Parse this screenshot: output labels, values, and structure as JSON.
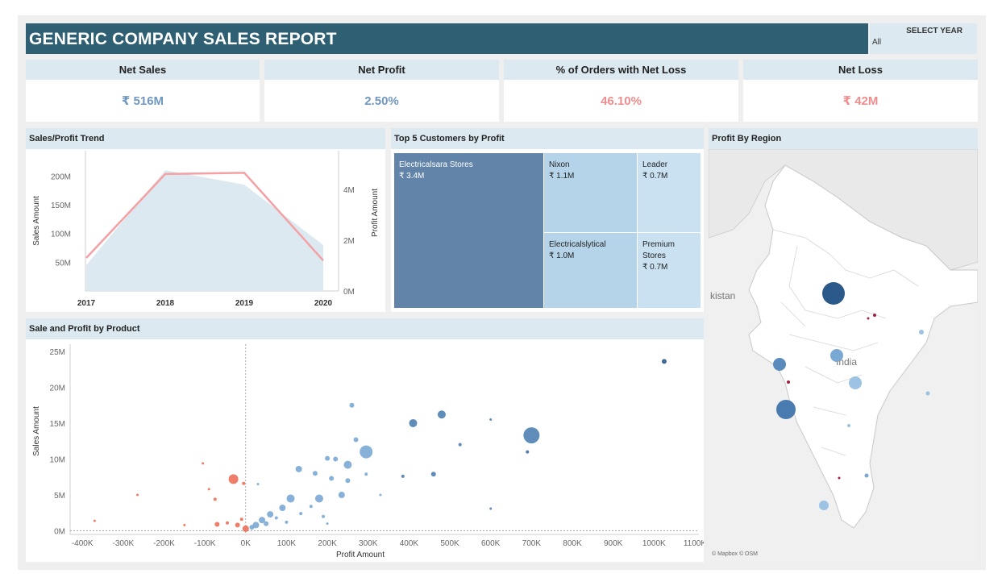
{
  "header": {
    "title": "GENERIC COMPANY SALES REPORT",
    "select_year_label": "SELECT YEAR",
    "select_year_value": "All"
  },
  "kpis": [
    {
      "label": "Net Sales",
      "value": "₹ 516M",
      "color": "#6f97bf"
    },
    {
      "label": "Net Profit",
      "value": "2.50%",
      "color": "#6f97bf"
    },
    {
      "label": "% of Orders with Net Loss",
      "value": "46.10%",
      "color": "#ef8d8d"
    },
    {
      "label": "Net Loss",
      "value": "₹ 42M",
      "color": "#ef8d8d"
    }
  ],
  "panels": {
    "trend_title": "Sales/Profit Trend",
    "customers_title": "Top 5 Customers by Profit",
    "region_title": "Profit By Region",
    "product_title": "Sale and Profit by Product"
  },
  "map": {
    "attribution": "© Mapbox © OSM",
    "label_pakistan": "kistan",
    "label_india": "India"
  },
  "treemap": [
    {
      "name": "Electricalsara Stores",
      "value": "₹ 3.4M",
      "color": "#6184a8"
    },
    {
      "name": "Nixon",
      "value": "₹ 1.1M",
      "color": "#b5d4ea"
    },
    {
      "name": "Leader",
      "value": "₹ 0.7M",
      "color": "#c9e1f1"
    },
    {
      "name": "Electricalslytical",
      "value": "₹ 1.0M",
      "color": "#b5d4ea"
    },
    {
      "name": "Premium Stores",
      "value": "₹ 0.7M",
      "color": "#c9e1f1"
    }
  ],
  "chart_data": [
    {
      "type": "area",
      "categories": [
        "2017",
        "2018",
        "2019",
        "2020"
      ],
      "series": [
        {
          "values": [
            45,
            210,
            185,
            80
          ],
          "color": "#dce9f0"
        },
        {
          "values": [
            1.3,
            4.6,
            4.65,
            1.2
          ],
          "color": "#f4a0a5"
        }
      ],
      "ylabel": "Sales Amount",
      "y2label": "Profit Amount",
      "yticks": [
        "50M",
        "100M",
        "150M",
        "200M"
      ],
      "y2ticks": [
        "0M",
        "2M",
        "4M"
      ],
      "ylim": [
        0,
        230
      ],
      "y2lim": [
        0,
        5.2
      ]
    },
    {
      "type": "scatter",
      "xlabel": "Profit Amount",
      "ylabel": "Sales Amount",
      "xticks": [
        "-400K",
        "-300K",
        "-200K",
        "-100K",
        "0K",
        "100K",
        "200K",
        "300K",
        "400K",
        "500K",
        "600K",
        "700K",
        "800K",
        "900K",
        "1000K",
        "1100K"
      ],
      "yticks": [
        "0M",
        "5M",
        "10M",
        "15M",
        "20M",
        "25M"
      ],
      "xlim": [
        -430,
        1110
      ],
      "ylim": [
        -0.5,
        26
      ],
      "points": [
        {
          "x": 1025,
          "y": 23.6,
          "s": 3,
          "c": "#2b5a8a"
        },
        {
          "x": 700,
          "y": 13.3,
          "s": 10,
          "c": "#4e7fb0"
        },
        {
          "x": 690,
          "y": 11.0,
          "s": 2,
          "c": "#3f6f9f"
        },
        {
          "x": 480,
          "y": 16.2,
          "s": 5,
          "c": "#4e7fb0"
        },
        {
          "x": 410,
          "y": 15.0,
          "s": 5,
          "c": "#4e7fb0"
        },
        {
          "x": 600,
          "y": 15.5,
          "s": 1.5,
          "c": "#4e7fb0"
        },
        {
          "x": 525,
          "y": 12.0,
          "s": 2,
          "c": "#4e7fb0"
        },
        {
          "x": 460,
          "y": 7.9,
          "s": 3,
          "c": "#4e7fb0"
        },
        {
          "x": 385,
          "y": 7.6,
          "s": 2,
          "c": "#4e7fb0"
        },
        {
          "x": 600,
          "y": 3.1,
          "s": 1.5,
          "c": "#4e7fb0"
        },
        {
          "x": 260,
          "y": 17.5,
          "s": 3,
          "c": "#7aa8d4"
        },
        {
          "x": 270,
          "y": 12.7,
          "s": 3,
          "c": "#7aa8d4"
        },
        {
          "x": 295,
          "y": 11.0,
          "s": 8,
          "c": "#7aa8d4"
        },
        {
          "x": 250,
          "y": 9.2,
          "s": 5,
          "c": "#7aa8d4"
        },
        {
          "x": 200,
          "y": 10.1,
          "s": 3,
          "c": "#7aa8d4"
        },
        {
          "x": 220,
          "y": 10.0,
          "s": 3,
          "c": "#7aa8d4"
        },
        {
          "x": 130,
          "y": 8.6,
          "s": 4,
          "c": "#7aa8d4"
        },
        {
          "x": 170,
          "y": 8.0,
          "s": 3,
          "c": "#7aa8d4"
        },
        {
          "x": 210,
          "y": 7.3,
          "s": 3,
          "c": "#7aa8d4"
        },
        {
          "x": 250,
          "y": 7.0,
          "s": 3,
          "c": "#7aa8d4"
        },
        {
          "x": 295,
          "y": 7.9,
          "s": 2,
          "c": "#7aa8d4"
        },
        {
          "x": 235,
          "y": 5.0,
          "s": 4,
          "c": "#7aa8d4"
        },
        {
          "x": 180,
          "y": 4.5,
          "s": 5,
          "c": "#7aa8d4"
        },
        {
          "x": 110,
          "y": 4.5,
          "s": 5,
          "c": "#7aa8d4"
        },
        {
          "x": 90,
          "y": 3.2,
          "s": 4,
          "c": "#7aa8d4"
        },
        {
          "x": 60,
          "y": 2.3,
          "s": 4,
          "c": "#7aa8d4"
        },
        {
          "x": 40,
          "y": 1.5,
          "s": 4,
          "c": "#7aa8d4"
        },
        {
          "x": 25,
          "y": 0.8,
          "s": 4,
          "c": "#7aa8d4"
        },
        {
          "x": 15,
          "y": 0.5,
          "s": 3,
          "c": "#7aa8d4"
        },
        {
          "x": 50,
          "y": 1.0,
          "s": 3,
          "c": "#7aa8d4"
        },
        {
          "x": 75,
          "y": 1.8,
          "s": 2,
          "c": "#7aa8d4"
        },
        {
          "x": 135,
          "y": 2.4,
          "s": 2,
          "c": "#7aa8d4"
        },
        {
          "x": 160,
          "y": 3.4,
          "s": 2,
          "c": "#7aa8d4"
        },
        {
          "x": 190,
          "y": 2.0,
          "s": 2,
          "c": "#7aa8d4"
        },
        {
          "x": 330,
          "y": 5.0,
          "s": 1.5,
          "c": "#7aa8d4"
        },
        {
          "x": 30,
          "y": 6.5,
          "s": 1.5,
          "c": "#7aa8d4"
        },
        {
          "x": 100,
          "y": 1.2,
          "s": 2,
          "c": "#7aa8d4"
        },
        {
          "x": 200,
          "y": 1.0,
          "s": 1.5,
          "c": "#7aa8d4"
        },
        {
          "x": -30,
          "y": 7.2,
          "s": 6,
          "c": "#ec6f5a"
        },
        {
          "x": 0,
          "y": 0.3,
          "s": 4,
          "c": "#ec6f5a"
        },
        {
          "x": -20,
          "y": 0.8,
          "s": 3,
          "c": "#ec6f5a"
        },
        {
          "x": -70,
          "y": 0.9,
          "s": 3,
          "c": "#ec6f5a"
        },
        {
          "x": -75,
          "y": 4.4,
          "s": 2,
          "c": "#ec6f5a"
        },
        {
          "x": -5,
          "y": 6.6,
          "s": 2,
          "c": "#ec6f5a"
        },
        {
          "x": -265,
          "y": 5.0,
          "s": 1.5,
          "c": "#ec6f5a"
        },
        {
          "x": -105,
          "y": 9.4,
          "s": 1.5,
          "c": "#ec6f5a"
        },
        {
          "x": -370,
          "y": 1.4,
          "s": 1.5,
          "c": "#ec6f5a"
        },
        {
          "x": -45,
          "y": 1.1,
          "s": 2,
          "c": "#ec6f5a"
        },
        {
          "x": -10,
          "y": 1.6,
          "s": 2,
          "c": "#ec6f5a"
        },
        {
          "x": -150,
          "y": 0.8,
          "s": 1.5,
          "c": "#ec6f5a"
        },
        {
          "x": -90,
          "y": 5.8,
          "s": 1.5,
          "c": "#ec6f5a"
        }
      ]
    }
  ]
}
